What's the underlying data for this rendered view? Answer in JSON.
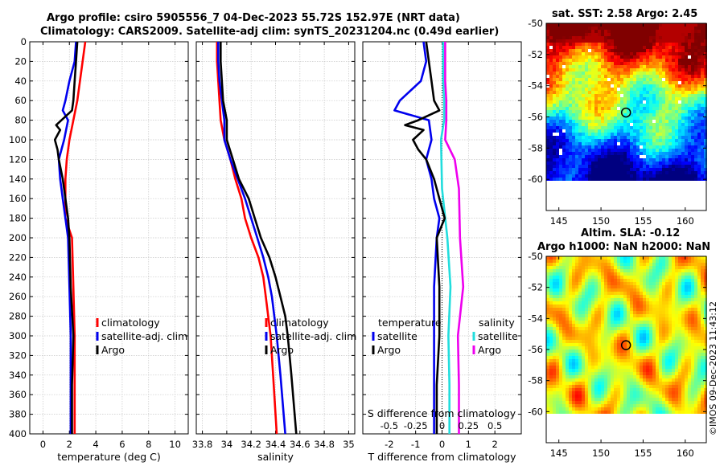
{
  "title_line1": "Argo profile: csiro 5905556_7 04-Dec-2023 55.72S 152.97E (NRT data)",
  "title_line2": "Climatology: CARS2009. Satellite-adj clim: synTS_20231204.nc (0.49d earlier)",
  "copyright": "©IMOS 09-Dec-2023 11:43:12",
  "colors": {
    "climatology": "#ff0000",
    "satellite": "#0000ee",
    "argo": "#000000",
    "sal_sat": "#22dddd",
    "sal_argo": "#ee00ee"
  },
  "chart_data": [
    {
      "type": "line",
      "name": "temperature",
      "xlabel": "temperature (deg C)",
      "xlim": [
        -1,
        11
      ],
      "ylim": [
        400,
        0
      ],
      "xticks": [
        "0",
        "2",
        "4",
        "6",
        "8",
        "10"
      ],
      "yticks": [
        "0",
        "20",
        "40",
        "60",
        "80",
        "100",
        "120",
        "140",
        "160",
        "180",
        "200",
        "220",
        "240",
        "260",
        "280",
        "300",
        "320",
        "340",
        "360",
        "380",
        "400"
      ],
      "legend": [
        "climatology",
        "satellite-adj. clim",
        "Argo"
      ],
      "series": [
        {
          "name": "climatology",
          "color": "#ff0000",
          "depth": [
            0,
            20,
            40,
            60,
            80,
            100,
            120,
            140,
            160,
            180,
            200,
            250,
            300,
            350,
            400
          ],
          "values": [
            3.2,
            3.0,
            2.8,
            2.6,
            2.3,
            2.0,
            1.8,
            1.7,
            1.7,
            1.7,
            2.2,
            2.3,
            2.4,
            2.4,
            2.4
          ]
        },
        {
          "name": "satellite-adj. clim",
          "color": "#0000ee",
          "depth": [
            0,
            20,
            40,
            60,
            70,
            80,
            100,
            120,
            140,
            160,
            180,
            200,
            250,
            300,
            350,
            400
          ],
          "values": [
            2.5,
            2.4,
            2.0,
            1.7,
            1.5,
            1.9,
            1.6,
            1.2,
            1.3,
            1.5,
            1.7,
            1.9,
            2.0,
            2.1,
            2.1,
            2.1
          ]
        },
        {
          "name": "Argo",
          "color": "#000000",
          "depth": [
            0,
            20,
            40,
            60,
            70,
            80,
            85,
            90,
            100,
            110,
            120,
            140,
            160,
            180,
            200,
            250,
            300,
            350,
            400
          ],
          "values": [
            2.6,
            2.5,
            2.4,
            2.3,
            2.2,
            1.4,
            1.0,
            1.3,
            0.9,
            1.1,
            1.2,
            1.5,
            1.7,
            1.9,
            2.0,
            2.1,
            2.3,
            2.2,
            2.2
          ]
        }
      ]
    },
    {
      "type": "line",
      "name": "salinity",
      "xlabel": "salinity",
      "xlim": [
        33.75,
        35.05
      ],
      "ylim": [
        400,
        0
      ],
      "xticks": [
        "33.8",
        "34",
        "34.2",
        "34.4",
        "34.6",
        "34.8",
        "35"
      ],
      "legend": [
        "climatology",
        "satellite-adj. clim",
        "Argo"
      ],
      "series": [
        {
          "name": "climatology",
          "color": "#ff0000",
          "depth": [
            0,
            20,
            40,
            60,
            80,
            100,
            120,
            140,
            160,
            180,
            200,
            220,
            240,
            260,
            280,
            300,
            340,
            400
          ],
          "values": [
            33.92,
            33.92,
            33.93,
            33.94,
            33.95,
            33.98,
            34.03,
            34.07,
            34.12,
            34.15,
            34.2,
            34.26,
            34.3,
            34.32,
            34.34,
            34.36,
            34.38,
            34.41
          ]
        },
        {
          "name": "satellite-adj. clim",
          "color": "#0000ee",
          "depth": [
            0,
            20,
            40,
            60,
            80,
            100,
            120,
            140,
            160,
            180,
            200,
            220,
            240,
            260,
            280,
            300,
            340,
            400
          ],
          "values": [
            33.93,
            33.93,
            33.94,
            33.96,
            33.98,
            33.98,
            34.03,
            34.09,
            34.15,
            34.2,
            34.25,
            34.3,
            34.34,
            34.37,
            34.39,
            34.41,
            34.44,
            34.48
          ]
        },
        {
          "name": "Argo",
          "color": "#000000",
          "depth": [
            0,
            20,
            40,
            60,
            80,
            100,
            120,
            140,
            160,
            180,
            200,
            220,
            240,
            260,
            280,
            300,
            340,
            400
          ],
          "values": [
            33.95,
            33.95,
            33.96,
            33.97,
            34.0,
            34.0,
            34.05,
            34.1,
            34.18,
            34.23,
            34.28,
            34.35,
            34.4,
            34.44,
            34.48,
            34.5,
            34.53,
            34.57
          ]
        }
      ]
    },
    {
      "type": "line",
      "name": "differences",
      "xlabel": "T difference from climatology",
      "xlabel_top": "S difference from climatology",
      "xlim": [
        -3,
        3
      ],
      "ylim": [
        400,
        0
      ],
      "xticks": [
        "-2",
        "-1",
        "0",
        "1",
        "2"
      ],
      "xticks_top": [
        "-0.5",
        "-0.25",
        "0",
        "0.25",
        "0.5"
      ],
      "legend_temperature": {
        "title": "temperature",
        "items": [
          "satellite",
          "Argo"
        ]
      },
      "legend_salinity": {
        "title": "salinity",
        "items": [
          "satellite",
          "Argo"
        ]
      },
      "series": [
        {
          "name": "temperature satellite",
          "color": "#0000ee",
          "depth": [
            0,
            20,
            40,
            60,
            70,
            80,
            100,
            120,
            140,
            160,
            180,
            200,
            250,
            300,
            350,
            400
          ],
          "values": [
            -0.7,
            -0.6,
            -0.8,
            -1.6,
            -1.8,
            -0.5,
            -0.4,
            -0.6,
            -0.4,
            -0.3,
            -0.1,
            -0.2,
            -0.3,
            -0.3,
            -0.3,
            -0.3
          ]
        },
        {
          "name": "temperature Argo",
          "color": "#000000",
          "depth": [
            0,
            20,
            40,
            60,
            70,
            80,
            85,
            90,
            100,
            110,
            120,
            140,
            160,
            180,
            200,
            250,
            300,
            350,
            400
          ],
          "values": [
            -0.6,
            -0.5,
            -0.4,
            -0.3,
            -0.1,
            -0.9,
            -1.4,
            -0.7,
            -1.1,
            -0.9,
            -0.6,
            -0.3,
            -0.1,
            0.1,
            -0.2,
            -0.1,
            -0.1,
            -0.2,
            -0.2
          ]
        },
        {
          "name": "salinity satellite",
          "color": "#22dddd",
          "depth": [
            0,
            20,
            40,
            60,
            80,
            100,
            150,
            200,
            250,
            300,
            350,
            400
          ],
          "values": [
            0.01,
            0.01,
            0.01,
            0.02,
            0.02,
            -0.01,
            0.0,
            0.05,
            0.08,
            0.06,
            0.07,
            0.07
          ]
        },
        {
          "name": "salinity Argo",
          "color": "#ee00ee",
          "depth": [
            0,
            20,
            40,
            60,
            80,
            100,
            120,
            150,
            200,
            250,
            300,
            350,
            400
          ],
          "values": [
            0.03,
            0.03,
            0.03,
            0.04,
            0.04,
            0.03,
            0.12,
            0.16,
            0.17,
            0.2,
            0.15,
            0.16,
            0.16
          ]
        }
      ]
    },
    {
      "type": "heatmap",
      "name": "sst_map",
      "title": "sat. SST: 2.58 Argo: 2.45",
      "xlim": [
        143.5,
        162.5
      ],
      "ylim": [
        -62,
        -50
      ],
      "xticks": [
        "145",
        "150",
        "155",
        "160"
      ],
      "yticks": [
        "-50",
        "-52",
        "-54",
        "-56",
        "-58",
        "-60"
      ],
      "marker": {
        "lon": 152.97,
        "lat": -55.72
      }
    },
    {
      "type": "heatmap",
      "name": "sla_map",
      "title": "Altim. SLA: -0.12",
      "subtitle": "Argo h1000: NaN h2000: NaN",
      "xlim": [
        143.5,
        162.5
      ],
      "ylim": [
        -62,
        -50
      ],
      "xticks": [
        "145",
        "150",
        "155",
        "160"
      ],
      "yticks": [
        "-50",
        "-52",
        "-54",
        "-56",
        "-58",
        "-60"
      ],
      "marker": {
        "lon": 152.97,
        "lat": -55.72
      }
    }
  ]
}
